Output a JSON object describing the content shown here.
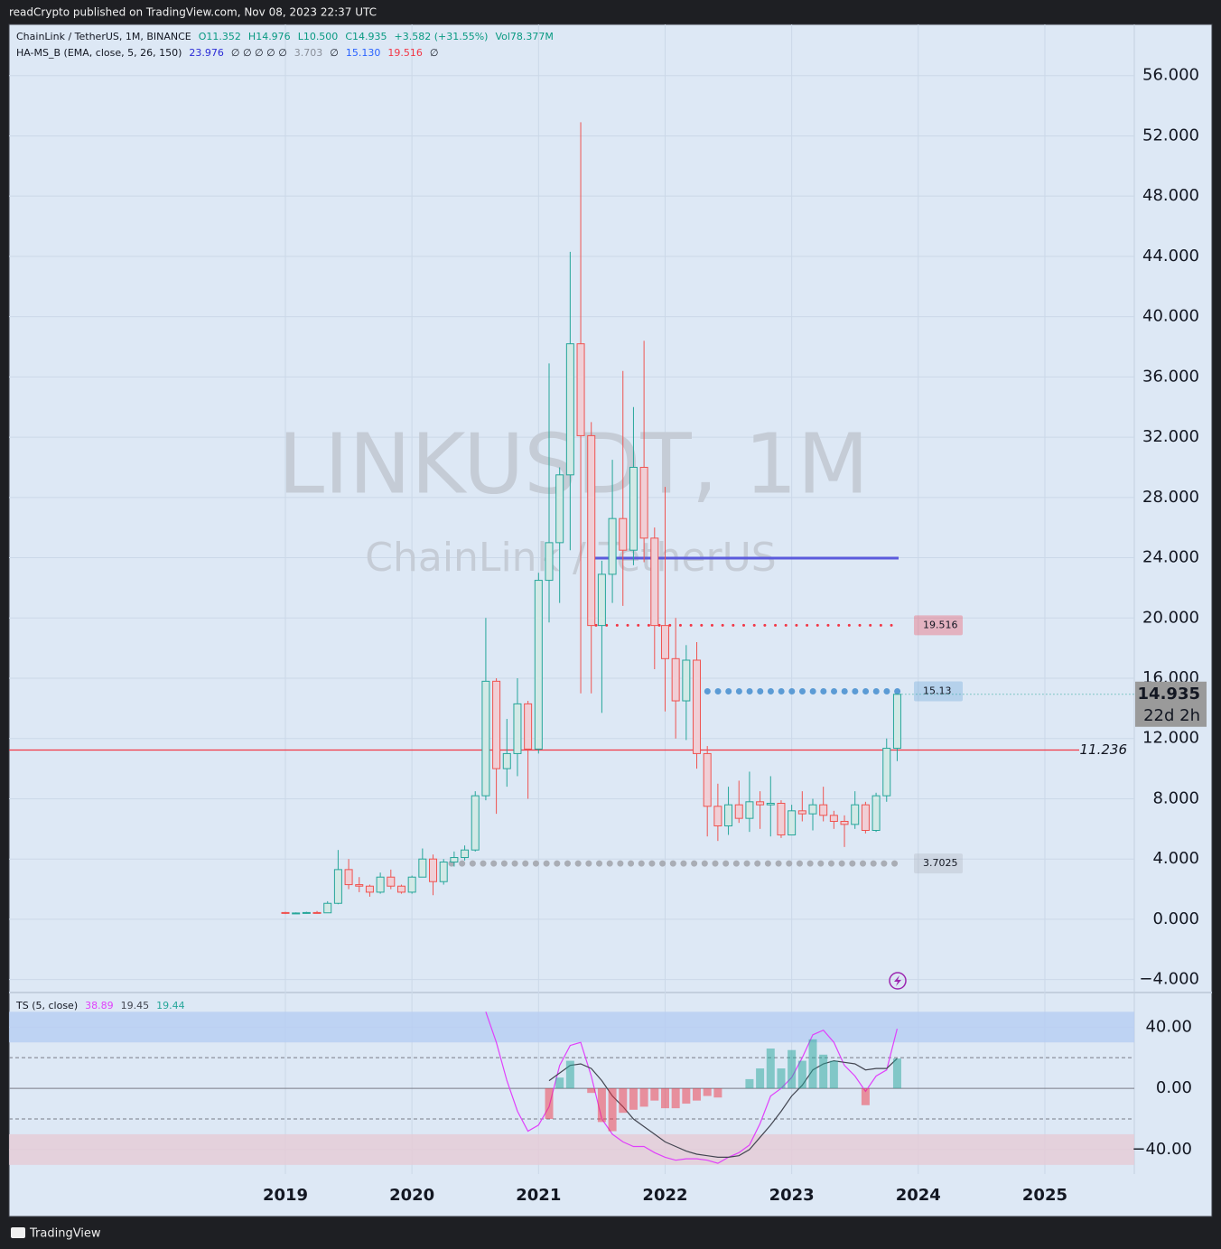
{
  "header": {
    "publisher": "readCrypto published on TradingView.com, Nov 08, 2023 22:37 UTC",
    "footer": "TradingView"
  },
  "chart_data": [
    {
      "type": "candlestick",
      "title": "ChainLink / TetherUS, 1M, BINANCE",
      "ohlc_legend": [
        {
          "text": "O11.352",
          "color": "#089981"
        },
        {
          "text": "H14.976",
          "color": "#089981"
        },
        {
          "text": "L10.500",
          "color": "#089981"
        },
        {
          "text": "C14.935",
          "color": "#089981"
        },
        {
          "text": "+3.582 (+31.55%)",
          "color": "#089981"
        },
        {
          "text": "Vol78.377M",
          "color": "#089981"
        }
      ],
      "indicator": {
        "name": "HA-MS_B (EMA, close, 5, 26, 150)",
        "values": [
          {
            "text": "23.976",
            "color": "#2b2bd6"
          },
          {
            "text": "∅ ∅ ∅ ∅ ∅",
            "color": "#131722"
          },
          {
            "text": "3.703",
            "color": "#8a8f99"
          },
          {
            "text": "∅",
            "color": "#131722"
          },
          {
            "text": "15.130",
            "color": "#2962ff"
          },
          {
            "text": "19.516",
            "color": "#f23645"
          },
          {
            "text": "∅",
            "color": "#131722"
          }
        ]
      },
      "watermark": "LINKUSDT, 1M",
      "watermark_subtitle": "ChainLink / TetherUS",
      "countdown": "22d 2h",
      "up_color": "#26a69a",
      "down_color": "#ef5350",
      "open": [
        0.45,
        0.4,
        0.42,
        0.45,
        0.43,
        1.06,
        3.3,
        2.3,
        2.2,
        1.8,
        2.8,
        2.2,
        1.8,
        2.8,
        4.0,
        2.5,
        3.8,
        4.1,
        4.6,
        8.2,
        15.8,
        10.0,
        11.0,
        14.3,
        11.3,
        22.5,
        25.0,
        29.5,
        38.2,
        32.1,
        19.5,
        22.9,
        26.6,
        24.5,
        30.0,
        25.3,
        19.5,
        17.3,
        14.5,
        17.2,
        11.0,
        7.5,
        6.2,
        7.6,
        6.7,
        7.8,
        7.6,
        7.7,
        5.6,
        7.2,
        7.0,
        7.6,
        6.9,
        6.5,
        6.3,
        7.6,
        5.9,
        8.2,
        11.352
      ],
      "high": [
        0.5,
        0.46,
        0.5,
        0.55,
        1.2,
        4.6,
        4.0,
        2.8,
        2.3,
        3.1,
        3.3,
        2.3,
        2.9,
        4.7,
        4.3,
        4.0,
        4.5,
        4.9,
        8.5,
        20.0,
        16.0,
        13.3,
        16.0,
        14.5,
        23.0,
        36.9,
        30.0,
        44.3,
        52.9,
        33.0,
        23.8,
        30.5,
        36.4,
        34.0,
        38.4,
        26.0,
        28.7,
        20.0,
        18.2,
        18.4,
        11.5,
        9.0,
        8.8,
        9.2,
        9.8,
        8.5,
        9.5,
        7.9,
        7.6,
        8.5,
        8.0,
        8.8,
        7.2,
        6.9,
        8.5,
        7.8,
        8.4,
        12.0,
        14.976
      ],
      "low": [
        0.35,
        0.36,
        0.38,
        0.4,
        0.42,
        1.0,
        2.0,
        1.8,
        1.5,
        1.7,
        2.0,
        1.7,
        1.7,
        2.8,
        1.6,
        2.3,
        3.5,
        3.9,
        4.5,
        7.9,
        7.0,
        8.8,
        9.5,
        8.0,
        11.0,
        19.7,
        21.0,
        24.5,
        15.0,
        15.0,
        13.7,
        21.0,
        20.8,
        23.5,
        23.7,
        16.6,
        13.8,
        12.0,
        11.9,
        10.0,
        5.5,
        5.2,
        5.6,
        6.4,
        5.8,
        6.0,
        5.5,
        5.4,
        5.6,
        6.5,
        5.9,
        6.5,
        6.0,
        4.8,
        6.0,
        5.7,
        5.8,
        7.8,
        10.5
      ],
      "close": [
        0.4,
        0.42,
        0.45,
        0.43,
        1.06,
        3.3,
        2.3,
        2.2,
        1.8,
        2.8,
        2.2,
        1.8,
        2.8,
        4.0,
        2.5,
        3.8,
        4.1,
        4.6,
        8.2,
        15.8,
        10.0,
        11.0,
        14.3,
        11.3,
        22.5,
        25.0,
        29.5,
        38.2,
        32.1,
        19.5,
        22.9,
        26.6,
        24.5,
        30.0,
        25.3,
        19.5,
        17.3,
        14.5,
        17.2,
        11.0,
        7.5,
        6.2,
        7.6,
        6.7,
        7.8,
        7.6,
        7.7,
        5.6,
        7.2,
        7.0,
        7.6,
        6.9,
        6.5,
        6.3,
        7.6,
        5.9,
        8.2,
        11.352,
        14.935
      ],
      "levels": [
        {
          "value": 19.516,
          "color": "#f23645",
          "style": "dots",
          "badge": true
        },
        {
          "value": 15.13,
          "color": "#5b9bd5",
          "style": "dots",
          "badge": true
        },
        {
          "value": 3.7025,
          "color": "#a9adb5",
          "style": "dots",
          "badge": true
        },
        {
          "value": 11.236,
          "color": "#f23645",
          "style": "line",
          "badge": false
        },
        {
          "value": 23.976,
          "color": "#5b5bdc",
          "style": "line",
          "badge": false
        }
      ],
      "ylim": [
        -4.8,
        59.4
      ],
      "yticks": [
        {
          "value": -4,
          "label": "−4.000"
        },
        {
          "value": 0,
          "label": "0.000"
        },
        {
          "value": 4,
          "label": "4.000"
        },
        {
          "value": 8,
          "label": "8.000"
        },
        {
          "value": 12,
          "label": "12.000"
        },
        {
          "value": 16,
          "label": "16.000"
        },
        {
          "value": 20,
          "label": "20.000"
        },
        {
          "value": 24,
          "label": "24.000"
        },
        {
          "value": 28,
          "label": "28.000"
        },
        {
          "value": 32,
          "label": "32.000"
        },
        {
          "value": 36,
          "label": "36.000"
        },
        {
          "value": 40,
          "label": "40.000"
        },
        {
          "value": 44,
          "label": "44.000"
        },
        {
          "value": 48,
          "label": "48.000"
        },
        {
          "value": 52,
          "label": "52.000"
        },
        {
          "value": 56,
          "label": "56.000"
        }
      ],
      "xticks": [
        2019,
        2020,
        2021,
        2022,
        2023,
        2024,
        2025
      ],
      "grid": true
    },
    {
      "type": "oscillator",
      "title": "TS (5, close)",
      "series": [
        {
          "name": "fast",
          "kind": "line",
          "color": "#e040fb",
          "values": [
            null,
            null,
            null,
            null,
            null,
            null,
            null,
            null,
            null,
            null,
            null,
            null,
            null,
            null,
            null,
            null,
            null,
            null,
            null,
            50,
            30,
            5,
            -15,
            -28,
            -24,
            -12,
            15,
            28,
            30,
            8,
            -20,
            -30,
            -35,
            -38,
            -38,
            -42,
            -45,
            -47,
            -46,
            -46,
            -47,
            -49,
            -45,
            -42,
            -37,
            -23,
            -5,
            0,
            7,
            20,
            35,
            38,
            30,
            15,
            8,
            -2,
            8,
            12,
            38.89
          ]
        },
        {
          "name": "slow",
          "kind": "line",
          "color": "#434651",
          "values": [
            null,
            null,
            null,
            null,
            null,
            null,
            null,
            null,
            null,
            null,
            null,
            null,
            null,
            null,
            null,
            null,
            null,
            null,
            null,
            null,
            null,
            null,
            null,
            null,
            null,
            5,
            10,
            15,
            16,
            13,
            5,
            -5,
            -12,
            -20,
            -25,
            -30,
            -35,
            -38,
            -41,
            -43,
            -44,
            -45,
            -45,
            -44,
            -40,
            -32,
            -24,
            -15,
            -5,
            2,
            12,
            16,
            18,
            17,
            16,
            12,
            13,
            13,
            19.45
          ]
        },
        {
          "name": "histogram",
          "kind": "histogram",
          "color": "#26a69a",
          "negative_color": "#f23645",
          "values": [
            null,
            null,
            null,
            null,
            null,
            null,
            null,
            null,
            null,
            null,
            null,
            null,
            null,
            null,
            null,
            null,
            null,
            null,
            null,
            null,
            null,
            null,
            null,
            null,
            null,
            -20,
            7,
            18,
            null,
            -3,
            -22,
            -28,
            -16,
            -14,
            -12,
            -8,
            -13,
            -13,
            -10,
            -8,
            -5,
            -6,
            null,
            null,
            6,
            13,
            26,
            13,
            25,
            18,
            32,
            22,
            18,
            null,
            null,
            -11,
            null,
            null,
            19.44
          ]
        }
      ],
      "bands": [
        {
          "from": 30,
          "to": 50,
          "color": "#b7cdf3"
        },
        {
          "from": -30,
          "to": -50,
          "color": "#e6cbd6"
        }
      ],
      "dashed_levels": [
        20,
        -20
      ],
      "ylim": [
        -56,
        62
      ],
      "yticks": [
        {
          "value": 40,
          "label": "40.00"
        },
        {
          "value": 0,
          "label": "0.00"
        },
        {
          "value": -40,
          "label": "−40.00"
        }
      ]
    }
  ]
}
